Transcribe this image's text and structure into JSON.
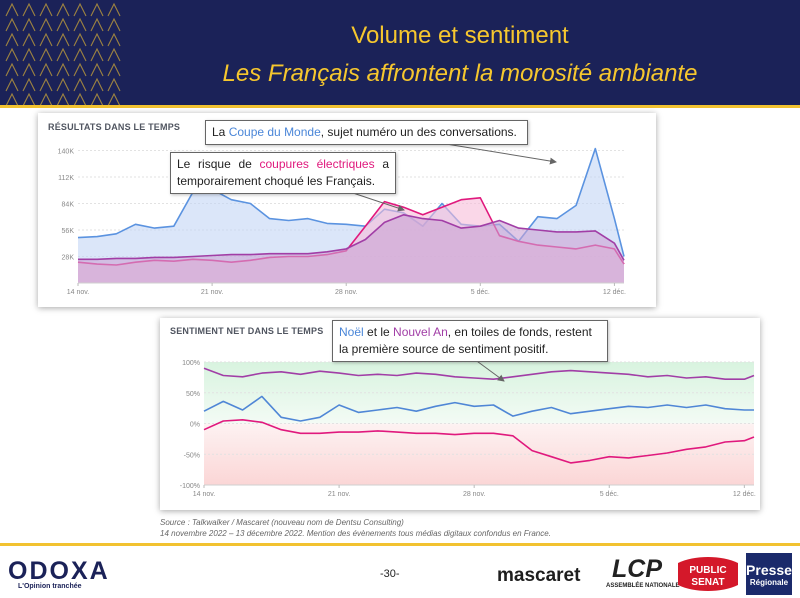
{
  "header": {
    "title": "Volume et sentiment",
    "subtitle": "Les Français affrontent la morosité ambiante"
  },
  "colors": {
    "navy": "#1b2258",
    "gold": "#f2c230",
    "blue": "#5b93e0",
    "pink": "#e0197d",
    "purple": "#a13ea6"
  },
  "chart_data": [
    {
      "type": "area",
      "title": "RÉSULTATS DANS LE TEMPS",
      "ylim": [
        0,
        150
      ],
      "y_ticks": [
        "28K",
        "56K",
        "84K",
        "112K",
        "140K"
      ],
      "y_tick_values": [
        28,
        56,
        84,
        112,
        140
      ],
      "x_ticks": [
        "14 nov.",
        "21 nov.",
        "28 nov.",
        "5 déc.",
        "12 déc."
      ],
      "x_tick_days": [
        0,
        7,
        14,
        21,
        28
      ],
      "grid": true,
      "series": [
        {
          "color": "#5b93e0",
          "fill": "#c3d6f5",
          "x": [
            0,
            1,
            2,
            3,
            4,
            5,
            6,
            7,
            8,
            9,
            10,
            11,
            12,
            13,
            14,
            15,
            16,
            17,
            18,
            19,
            20,
            21,
            22,
            23,
            24,
            25,
            26,
            27,
            28,
            28.5
          ],
          "values": [
            48,
            49,
            52,
            62,
            58,
            60,
            96,
            99,
            88,
            84,
            68,
            66,
            68,
            63,
            62,
            60,
            78,
            74,
            60,
            84,
            62,
            60,
            62,
            44,
            70,
            68,
            82,
            142,
            68,
            28
          ]
        },
        {
          "color": "#e0197d",
          "fill": "#f6bcd9",
          "x": [
            0,
            1,
            2,
            3,
            4,
            5,
            6,
            7,
            8,
            9,
            10,
            11,
            12,
            13,
            14,
            15,
            16,
            17,
            18,
            19,
            20,
            21,
            22,
            23,
            24,
            25,
            26,
            27,
            28,
            28.5
          ],
          "values": [
            22,
            20,
            19,
            22,
            24,
            23,
            25,
            24,
            22,
            24,
            27,
            28,
            28,
            30,
            34,
            60,
            86,
            80,
            72,
            80,
            88,
            90,
            50,
            44,
            40,
            38,
            36,
            40,
            36,
            20
          ]
        },
        {
          "color": "#a13ea6",
          "fill": "#cba3d3",
          "x": [
            0,
            1,
            2,
            3,
            4,
            5,
            6,
            7,
            8,
            9,
            10,
            11,
            12,
            13,
            14,
            15,
            16,
            17,
            18,
            19,
            20,
            21,
            22,
            23,
            24,
            25,
            26,
            27,
            28,
            28.5
          ],
          "values": [
            25,
            25,
            26,
            26,
            27,
            27,
            28,
            29,
            30,
            30,
            31,
            31,
            31,
            33,
            36,
            46,
            64,
            72,
            68,
            66,
            58,
            60,
            66,
            58,
            56,
            54,
            54,
            55,
            42,
            24
          ]
        }
      ]
    },
    {
      "type": "line",
      "title": "SENTIMENT NET DANS LE TEMPS",
      "ylim": [
        -100,
        100
      ],
      "y_ticks": [
        "100%",
        "50%",
        "0%",
        "-50%",
        "-100%"
      ],
      "y_tick_values": [
        100,
        50,
        0,
        -50,
        -100
      ],
      "x_ticks": [
        "14 nov.",
        "21 nov.",
        "28 nov.",
        "5 déc.",
        "12 déc."
      ],
      "x_tick_days": [
        0,
        7,
        14,
        21,
        28
      ],
      "grid": true,
      "series": [
        {
          "color": "#a13ea6",
          "x": [
            0,
            1,
            2,
            3,
            4,
            5,
            6,
            7,
            8,
            9,
            10,
            11,
            12,
            13,
            14,
            15,
            16,
            17,
            18,
            19,
            20,
            21,
            22,
            23,
            24,
            25,
            26,
            27,
            28,
            28.5
          ],
          "values": [
            90,
            78,
            76,
            82,
            84,
            80,
            85,
            82,
            78,
            80,
            78,
            82,
            80,
            76,
            74,
            72,
            76,
            80,
            84,
            86,
            84,
            82,
            80,
            76,
            78,
            74,
            76,
            72,
            72,
            78
          ]
        },
        {
          "color": "#4f86d6",
          "x": [
            0,
            1,
            2,
            3,
            4,
            5,
            6,
            7,
            8,
            9,
            10,
            11,
            12,
            13,
            14,
            15,
            16,
            17,
            18,
            19,
            20,
            21,
            22,
            23,
            24,
            25,
            26,
            27,
            28,
            28.5
          ],
          "values": [
            20,
            36,
            22,
            44,
            10,
            4,
            10,
            30,
            18,
            22,
            26,
            20,
            28,
            34,
            28,
            30,
            12,
            20,
            26,
            16,
            20,
            24,
            28,
            26,
            30,
            26,
            30,
            24,
            22,
            22
          ]
        },
        {
          "color": "#e0197d",
          "x": [
            0,
            1,
            2,
            3,
            4,
            5,
            6,
            7,
            8,
            9,
            10,
            11,
            12,
            13,
            14,
            15,
            16,
            17,
            18,
            19,
            20,
            21,
            22,
            23,
            24,
            25,
            26,
            27,
            28,
            28.5
          ],
          "values": [
            -10,
            4,
            6,
            2,
            -10,
            -16,
            -16,
            -14,
            -14,
            -12,
            -14,
            -16,
            -16,
            -18,
            -16,
            -16,
            -20,
            -44,
            -54,
            -64,
            -60,
            -54,
            -56,
            -52,
            -48,
            -42,
            -38,
            -30,
            -28,
            -22
          ]
        }
      ]
    }
  ],
  "annotations": {
    "a1_pre": "La ",
    "a1_hl": "Coupe du Monde",
    "a1_post": ", sujet numéro un des conversations.",
    "a2_pre": "Le risque de ",
    "a2_hl": "coupures électriques",
    "a2_post": " a temporairement choqué les Français.",
    "a3_hl1": "Noël",
    "a3_mid": " et le ",
    "a3_hl2": "Nouvel An",
    "a3_post": ", en toiles de fonds, restent la première source de sentiment positif."
  },
  "source": {
    "line1": "Source : Talkwalker / Mascaret (nouveau nom de Dentsu Consulting)",
    "line2": "14 novembre 2022 – 13 décembre 2022. Mention des évènements tous médias digitaux confondus en France."
  },
  "footer": {
    "odoxa": "ODOXA",
    "odoxa_tagline": "L'Opinion tranchée",
    "page": "-30-",
    "mascaret": "mascaret",
    "lcp": "LCP",
    "lcp_sub": "ASSEMBLÉE NATIONALE",
    "public_senat_1": "PUBLIC",
    "public_senat_2": "SENAT",
    "presse_1": "Presse",
    "presse_2": "Régionale"
  }
}
